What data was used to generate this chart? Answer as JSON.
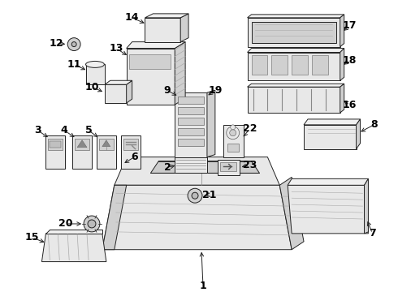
{
  "bg_color": "#ffffff",
  "line_color": "#222222",
  "fill_light": "#e8e8e8",
  "fill_mid": "#d0d0d0",
  "fill_dark": "#bbbbbb",
  "label_fontsize": 9,
  "parts_layout": "exploded_diagram"
}
